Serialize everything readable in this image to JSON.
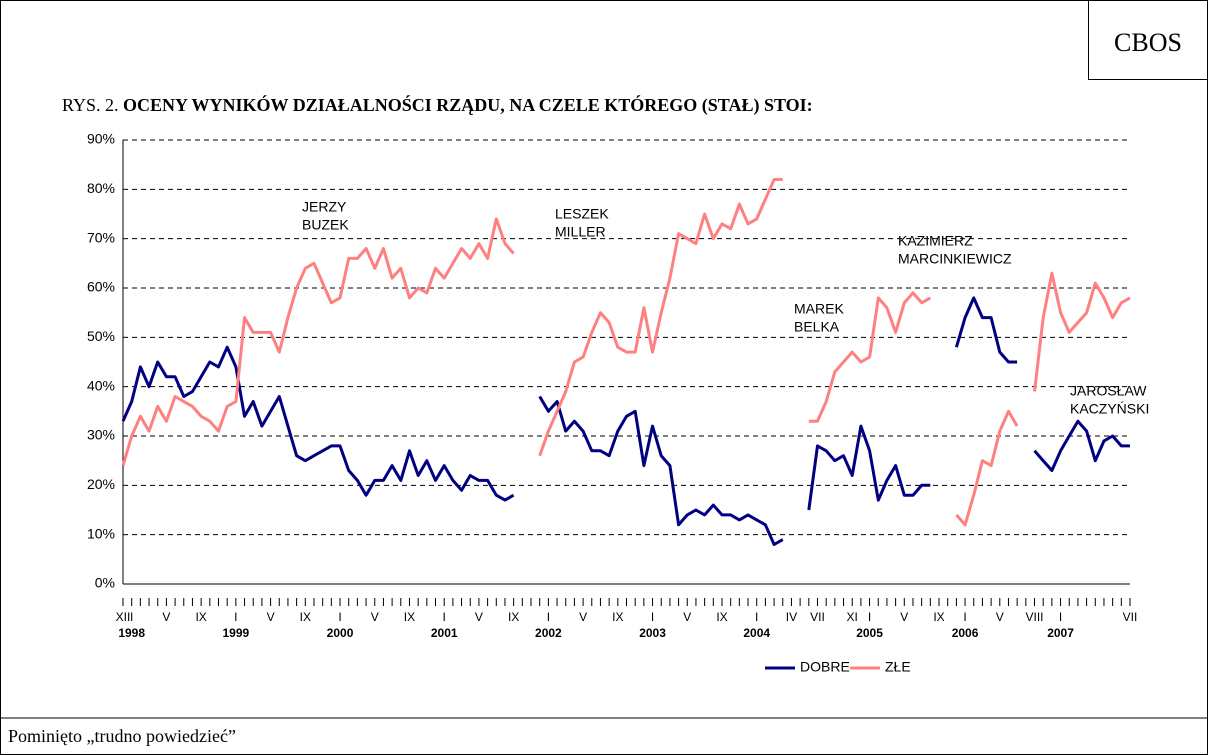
{
  "badge": "CBOS",
  "title_prefix": "RYS. 2.",
  "footer": "Pominięto „trudno powiedzieć”",
  "chart_data": {
    "type": "line",
    "title": "OCENY WYNIKÓW DZIAŁALNOŚCI RZĄDU, NA CZELE KTÓREGO (STAŁ) STOI:",
    "categories": [
      "XII",
      "I",
      null,
      null,
      null,
      "V",
      null,
      null,
      null,
      "IX",
      null,
      null,
      null,
      "I",
      null,
      null,
      null,
      "V",
      null,
      null,
      null,
      "IX",
      null,
      null,
      null,
      "I",
      null,
      null,
      null,
      "V",
      null,
      null,
      null,
      "IX",
      null,
      null,
      null,
      "I",
      null,
      null,
      null,
      "V",
      null,
      null,
      null,
      "IX",
      null,
      null,
      null,
      "I",
      null,
      null,
      null,
      "V",
      null,
      null,
      null,
      "IX",
      null,
      null,
      null,
      "I",
      null,
      null,
      null,
      "V",
      null,
      null,
      null,
      "IX",
      null,
      null,
      null,
      "I",
      null,
      null,
      null,
      "IV",
      null,
      null,
      "VII",
      null,
      null,
      null,
      "XI",
      null,
      "I",
      null,
      null,
      null,
      "V",
      null,
      null,
      null,
      "IX",
      null,
      null,
      "I",
      null,
      null,
      null,
      "V",
      null,
      null,
      null,
      "VIII",
      null,
      null,
      "I",
      null,
      null,
      null,
      null,
      null,
      null,
      null,
      "VII"
    ],
    "year_labels": [
      null,
      "1998",
      null,
      null,
      null,
      null,
      null,
      null,
      null,
      null,
      null,
      null,
      null,
      "1999",
      null,
      null,
      null,
      null,
      null,
      null,
      null,
      null,
      null,
      null,
      null,
      "2000",
      null,
      null,
      null,
      null,
      null,
      null,
      null,
      null,
      null,
      null,
      null,
      "2001",
      null,
      null,
      null,
      null,
      null,
      null,
      null,
      null,
      null,
      null,
      null,
      "2002",
      null,
      null,
      null,
      null,
      null,
      null,
      null,
      null,
      null,
      null,
      null,
      "2003",
      null,
      null,
      null,
      null,
      null,
      null,
      null,
      null,
      null,
      null,
      null,
      "2004",
      null,
      null,
      null,
      null,
      null,
      null,
      null,
      null,
      null,
      null,
      null,
      null,
      "2005",
      null,
      null,
      null,
      null,
      null,
      null,
      null,
      null,
      null,
      null,
      "2006",
      null,
      null,
      null,
      null,
      null,
      null,
      null,
      null,
      null,
      null,
      "2007",
      null,
      null,
      null,
      null,
      null,
      null,
      null,
      null
    ],
    "series": [
      {
        "name": "DOBRE",
        "color": "#000080",
        "values": [
          33,
          37,
          44,
          40,
          45,
          42,
          42,
          38,
          39,
          42,
          45,
          44,
          48,
          44,
          34,
          37,
          32,
          35,
          38,
          32,
          26,
          25,
          26,
          27,
          28,
          28,
          23,
          21,
          18,
          21,
          21,
          24,
          21,
          27,
          22,
          25,
          21,
          24,
          21,
          19,
          22,
          21,
          21,
          18,
          17,
          18,
          null,
          null,
          38,
          35,
          37,
          31,
          33,
          31,
          27,
          27,
          26,
          31,
          34,
          35,
          24,
          32,
          26,
          24,
          12,
          14,
          15,
          14,
          16,
          14,
          14,
          13,
          14,
          13,
          12,
          8,
          9,
          null,
          null,
          15,
          28,
          27,
          25,
          26,
          22,
          32,
          27,
          17,
          21,
          24,
          18,
          18,
          20,
          20,
          null,
          null,
          48,
          54,
          58,
          54,
          54,
          47,
          45,
          45,
          null,
          27,
          25,
          23,
          27,
          30,
          33,
          31,
          25,
          29,
          30,
          28,
          28
        ]
      },
      {
        "name": "ZŁE",
        "color": "#ff8080",
        "values": [
          24,
          30,
          34,
          31,
          36,
          33,
          38,
          37,
          36,
          34,
          33,
          31,
          36,
          37,
          54,
          51,
          51,
          51,
          47,
          54,
          60,
          64,
          65,
          61,
          57,
          58,
          66,
          66,
          68,
          64,
          68,
          62,
          64,
          58,
          60,
          59,
          64,
          62,
          65,
          68,
          66,
          69,
          66,
          74,
          69,
          67,
          null,
          null,
          26,
          31,
          35,
          39,
          45,
          46,
          51,
          55,
          53,
          48,
          47,
          47,
          56,
          47,
          55,
          62,
          71,
          70,
          69,
          75,
          70,
          73,
          72,
          77,
          73,
          74,
          78,
          82,
          82,
          null,
          null,
          33,
          33,
          37,
          43,
          45,
          47,
          45,
          46,
          58,
          56,
          51,
          57,
          59,
          57,
          58,
          null,
          null,
          14,
          12,
          18,
          25,
          24,
          31,
          35,
          32,
          null,
          39,
          54,
          63,
          55,
          51,
          53,
          55,
          61,
          58,
          54,
          57,
          58
        ]
      }
    ],
    "ylim": [
      0,
      90
    ],
    "yticks": [
      {
        "value": 0,
        "label": "0%"
      },
      {
        "value": 10,
        "label": "10%"
      },
      {
        "value": 20,
        "label": "20%"
      },
      {
        "value": 30,
        "label": "30%"
      },
      {
        "value": 40,
        "label": "40%"
      },
      {
        "value": 50,
        "label": "50%"
      },
      {
        "value": 60,
        "label": "60%"
      },
      {
        "value": 70,
        "label": "70%"
      },
      {
        "value": 80,
        "label": "80%"
      },
      {
        "value": 90,
        "label": "90%"
      }
    ],
    "grid": true,
    "legend": "bottom",
    "annotations": [
      [
        "JERZY",
        "BUZEK"
      ],
      [
        "LESZEK",
        "MILLER"
      ],
      [
        "MAREK",
        "BELKA"
      ],
      [
        "KAZIMIERZ",
        "MARCINKIEWICZ"
      ],
      [
        "JAROSŁAW",
        "KACZYŃSKI"
      ]
    ]
  }
}
